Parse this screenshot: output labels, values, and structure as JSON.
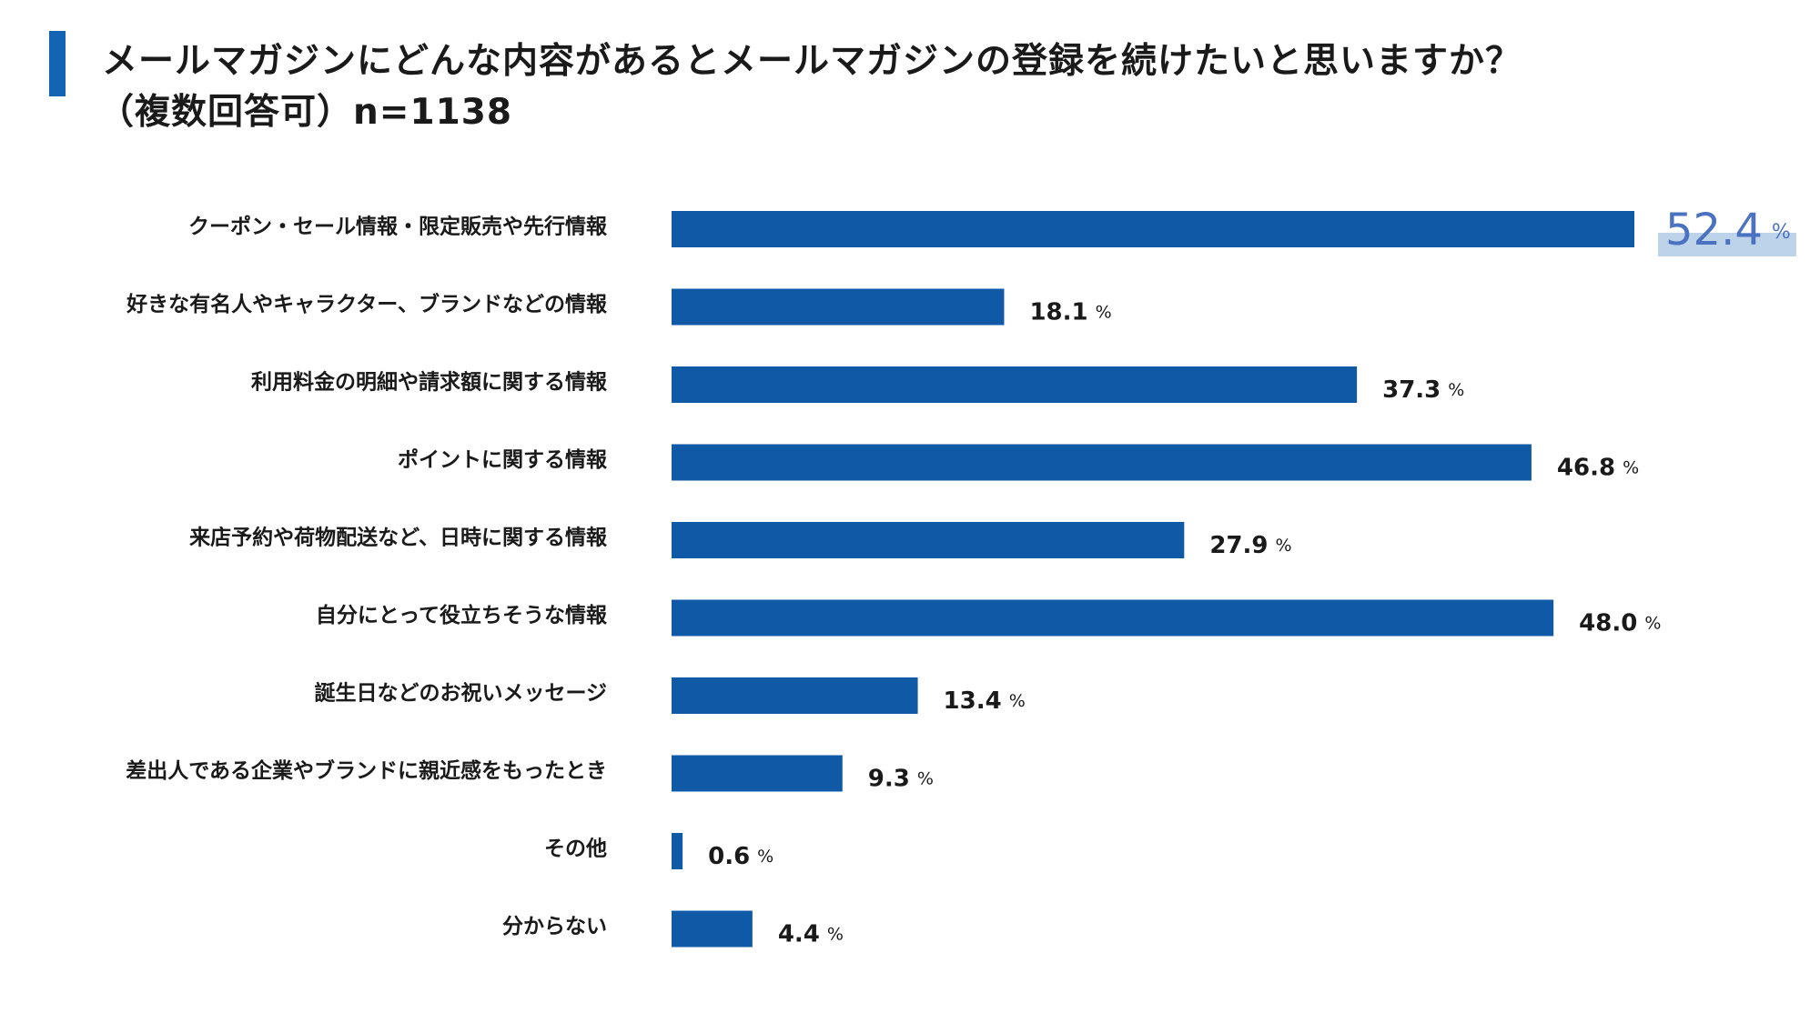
{
  "title": {
    "line1": "メールマガジンにどんな内容があるとメールマガジンの登録を続けたいと思いますか？",
    "line2": "（複数回答可）n=1138"
  },
  "chart_data": {
    "type": "bar",
    "orientation": "horizontal",
    "categories": [
      "クーポン・セール情報・限定販売や先行情報",
      "好きな有名人やキャラクター、ブランドなどの情報",
      "利用料金の明細や請求額に関する情報",
      "ポイントに関する情報",
      "来店予約や荷物配送など、日時に関する情報",
      "自分にとって役立ちそうな情報",
      "誕生日などのお祝いメッセージ",
      "差出人である企業やブランドに親近感をもったとき",
      "その他",
      "分からない"
    ],
    "values": [
      52.4,
      18.1,
      37.3,
      46.8,
      27.9,
      48.0,
      13.4,
      9.3,
      0.6,
      4.4
    ],
    "value_labels": [
      "52.4",
      "18.1",
      "37.3",
      "46.8",
      "27.9",
      "48.0",
      "13.4",
      "9.3",
      "0.6",
      "4.4"
    ],
    "unit": "%",
    "highlight_index": 0,
    "xlim": [
      0,
      52.4
    ],
    "grid": false,
    "colors": {
      "bar": "#1059a6",
      "highlight_text": "#4a72c0",
      "highlight_band": "#bcd3ea",
      "accent": "#1464b4"
    }
  }
}
